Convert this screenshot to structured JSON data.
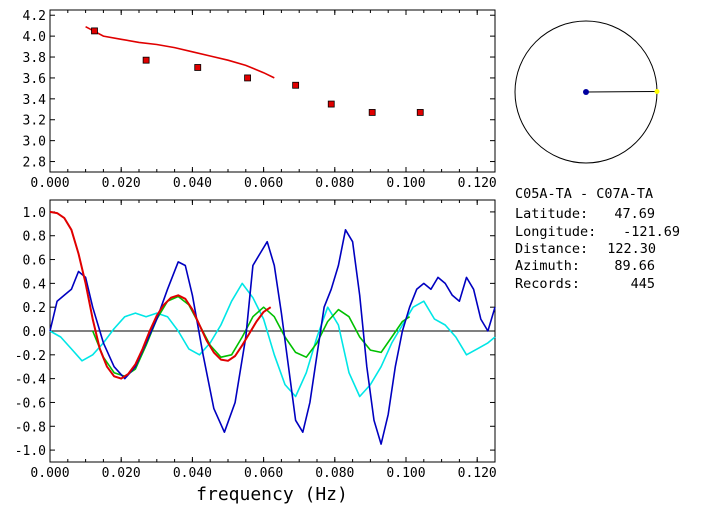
{
  "chart_data": [
    {
      "type": "scatter",
      "xlim": [
        0.0,
        0.125
      ],
      "ylim": [
        2.7,
        4.25
      ],
      "x_ticks": [
        "0.000",
        "0.020",
        "0.040",
        "0.060",
        "0.080",
        "0.100",
        "0.120"
      ],
      "y_ticks": [
        "2.8",
        "3.0",
        "3.2",
        "3.4",
        "3.6",
        "3.8",
        "4.0",
        "4.2"
      ],
      "series": [
        {
          "kind": "points",
          "color": "#e00000",
          "x": [
            0.0125,
            0.027,
            0.0415,
            0.0555,
            0.069,
            0.079,
            0.0905,
            0.104
          ],
          "y": [
            4.05,
            3.77,
            3.7,
            3.6,
            3.53,
            3.35,
            3.27,
            3.27
          ]
        },
        {
          "kind": "line",
          "color": "#e00000",
          "x": [
            0.01,
            0.015,
            0.02,
            0.025,
            0.03,
            0.035,
            0.04,
            0.045,
            0.05,
            0.055,
            0.06,
            0.063
          ],
          "y": [
            4.09,
            4.0,
            3.97,
            3.94,
            3.92,
            3.89,
            3.85,
            3.81,
            3.77,
            3.72,
            3.65,
            3.6
          ]
        }
      ]
    },
    {
      "type": "line",
      "xlabel": "frequency (Hz)",
      "xlim": [
        0.0,
        0.125
      ],
      "ylim": [
        -1.1,
        1.1
      ],
      "x_ticks": [
        "0.000",
        "0.020",
        "0.040",
        "0.060",
        "0.080",
        "0.100",
        "0.120"
      ],
      "y_ticks": [
        "1.0",
        "0.8",
        "0.6",
        "0.4",
        "0.2",
        "0.0",
        "-0.2",
        "-0.4",
        "-0.6",
        "-0.8",
        "-1.0"
      ],
      "zero_line": true,
      "series": [
        {
          "color": "#00e6e6",
          "x": [
            0.0,
            0.003,
            0.006,
            0.009,
            0.012,
            0.015,
            0.018,
            0.021,
            0.024,
            0.027,
            0.03,
            0.033,
            0.036,
            0.039,
            0.042,
            0.045,
            0.048,
            0.051,
            0.054,
            0.057,
            0.06,
            0.063,
            0.066,
            0.069,
            0.072,
            0.075,
            0.078,
            0.081,
            0.084,
            0.087,
            0.09,
            0.093,
            0.096,
            0.099,
            0.102,
            0.105,
            0.108,
            0.111,
            0.114,
            0.117,
            0.12,
            0.123,
            0.125
          ],
          "y": [
            0.0,
            -0.05,
            -0.15,
            -0.25,
            -0.2,
            -0.1,
            0.02,
            0.12,
            0.15,
            0.12,
            0.15,
            0.12,
            0.0,
            -0.15,
            -0.2,
            -0.1,
            0.05,
            0.25,
            0.4,
            0.28,
            0.1,
            -0.2,
            -0.45,
            -0.55,
            -0.35,
            -0.05,
            0.2,
            0.05,
            -0.35,
            -0.55,
            -0.45,
            -0.3,
            -0.1,
            0.05,
            0.2,
            0.25,
            0.1,
            0.05,
            -0.05,
            -0.2,
            -0.15,
            -0.1,
            -0.05
          ]
        },
        {
          "color": "#00c000",
          "x": [
            0.012,
            0.015,
            0.018,
            0.021,
            0.024,
            0.027,
            0.03,
            0.033,
            0.036,
            0.039,
            0.042,
            0.045,
            0.048,
            0.051,
            0.054,
            0.057,
            0.06,
            0.063,
            0.066,
            0.069,
            0.072,
            0.075,
            0.078,
            0.081,
            0.084,
            0.087,
            0.09,
            0.093,
            0.096,
            0.099,
            0.101
          ],
          "y": [
            0.0,
            -0.22,
            -0.35,
            -0.38,
            -0.32,
            -0.12,
            0.1,
            0.25,
            0.29,
            0.22,
            0.05,
            -0.12,
            -0.22,
            -0.2,
            -0.05,
            0.12,
            0.2,
            0.12,
            -0.05,
            -0.18,
            -0.22,
            -0.1,
            0.08,
            0.18,
            0.12,
            -0.05,
            -0.16,
            -0.18,
            -0.05,
            0.08,
            0.12
          ]
        },
        {
          "color": "#0000c0",
          "x": [
            0.0,
            0.002,
            0.004,
            0.006,
            0.008,
            0.01,
            0.012,
            0.015,
            0.018,
            0.021,
            0.024,
            0.027,
            0.03,
            0.033,
            0.036,
            0.038,
            0.04,
            0.043,
            0.046,
            0.049,
            0.052,
            0.055,
            0.057,
            0.059,
            0.061,
            0.063,
            0.065,
            0.067,
            0.069,
            0.071,
            0.073,
            0.075,
            0.077,
            0.079,
            0.081,
            0.083,
            0.085,
            0.087,
            0.089,
            0.091,
            0.093,
            0.095,
            0.097,
            0.099,
            0.101,
            0.103,
            0.105,
            0.107,
            0.109,
            0.111,
            0.113,
            0.115,
            0.117,
            0.119,
            0.121,
            0.123,
            0.125
          ],
          "y": [
            0.0,
            0.25,
            0.3,
            0.35,
            0.5,
            0.45,
            0.2,
            -0.1,
            -0.3,
            -0.4,
            -0.3,
            -0.1,
            0.1,
            0.35,
            0.58,
            0.55,
            0.3,
            -0.2,
            -0.65,
            -0.85,
            -0.6,
            -0.05,
            0.55,
            0.65,
            0.75,
            0.55,
            0.15,
            -0.3,
            -0.75,
            -0.85,
            -0.6,
            -0.2,
            0.2,
            0.35,
            0.55,
            0.85,
            0.75,
            0.3,
            -0.3,
            -0.75,
            -0.95,
            -0.7,
            -0.3,
            0.0,
            0.2,
            0.35,
            0.4,
            0.35,
            0.45,
            0.4,
            0.3,
            0.25,
            0.45,
            0.35,
            0.1,
            0.0,
            0.2
          ]
        },
        {
          "color": "#e00000",
          "x": [
            0.0,
            0.002,
            0.004,
            0.006,
            0.008,
            0.01,
            0.012,
            0.014,
            0.016,
            0.018,
            0.02,
            0.022,
            0.024,
            0.026,
            0.028,
            0.03,
            0.032,
            0.034,
            0.036,
            0.038,
            0.04,
            0.042,
            0.044,
            0.046,
            0.048,
            0.05,
            0.052,
            0.054,
            0.056,
            0.058,
            0.06,
            0.062
          ],
          "y": [
            1.0,
            0.99,
            0.95,
            0.85,
            0.65,
            0.4,
            0.1,
            -0.15,
            -0.3,
            -0.38,
            -0.4,
            -0.36,
            -0.28,
            -0.15,
            0.0,
            0.13,
            0.22,
            0.28,
            0.3,
            0.27,
            0.18,
            0.05,
            -0.08,
            -0.18,
            -0.24,
            -0.25,
            -0.21,
            -0.12,
            -0.02,
            0.08,
            0.16,
            0.2
          ]
        }
      ]
    }
  ],
  "map": {
    "center_color": "#0000a0",
    "line_color": "#000000",
    "station_color": "#ffff00"
  },
  "info": {
    "title": "C05A-TA  - C07A-TA",
    "rows": [
      {
        "label": "Latitude:",
        "value": "47.69"
      },
      {
        "label": "Longitude:",
        "value": "-121.69"
      },
      {
        "label": "Distance:",
        "value": "122.30"
      },
      {
        "label": "Azimuth:",
        "value": "89.66"
      },
      {
        "label": "Records:",
        "value": "445"
      }
    ]
  }
}
